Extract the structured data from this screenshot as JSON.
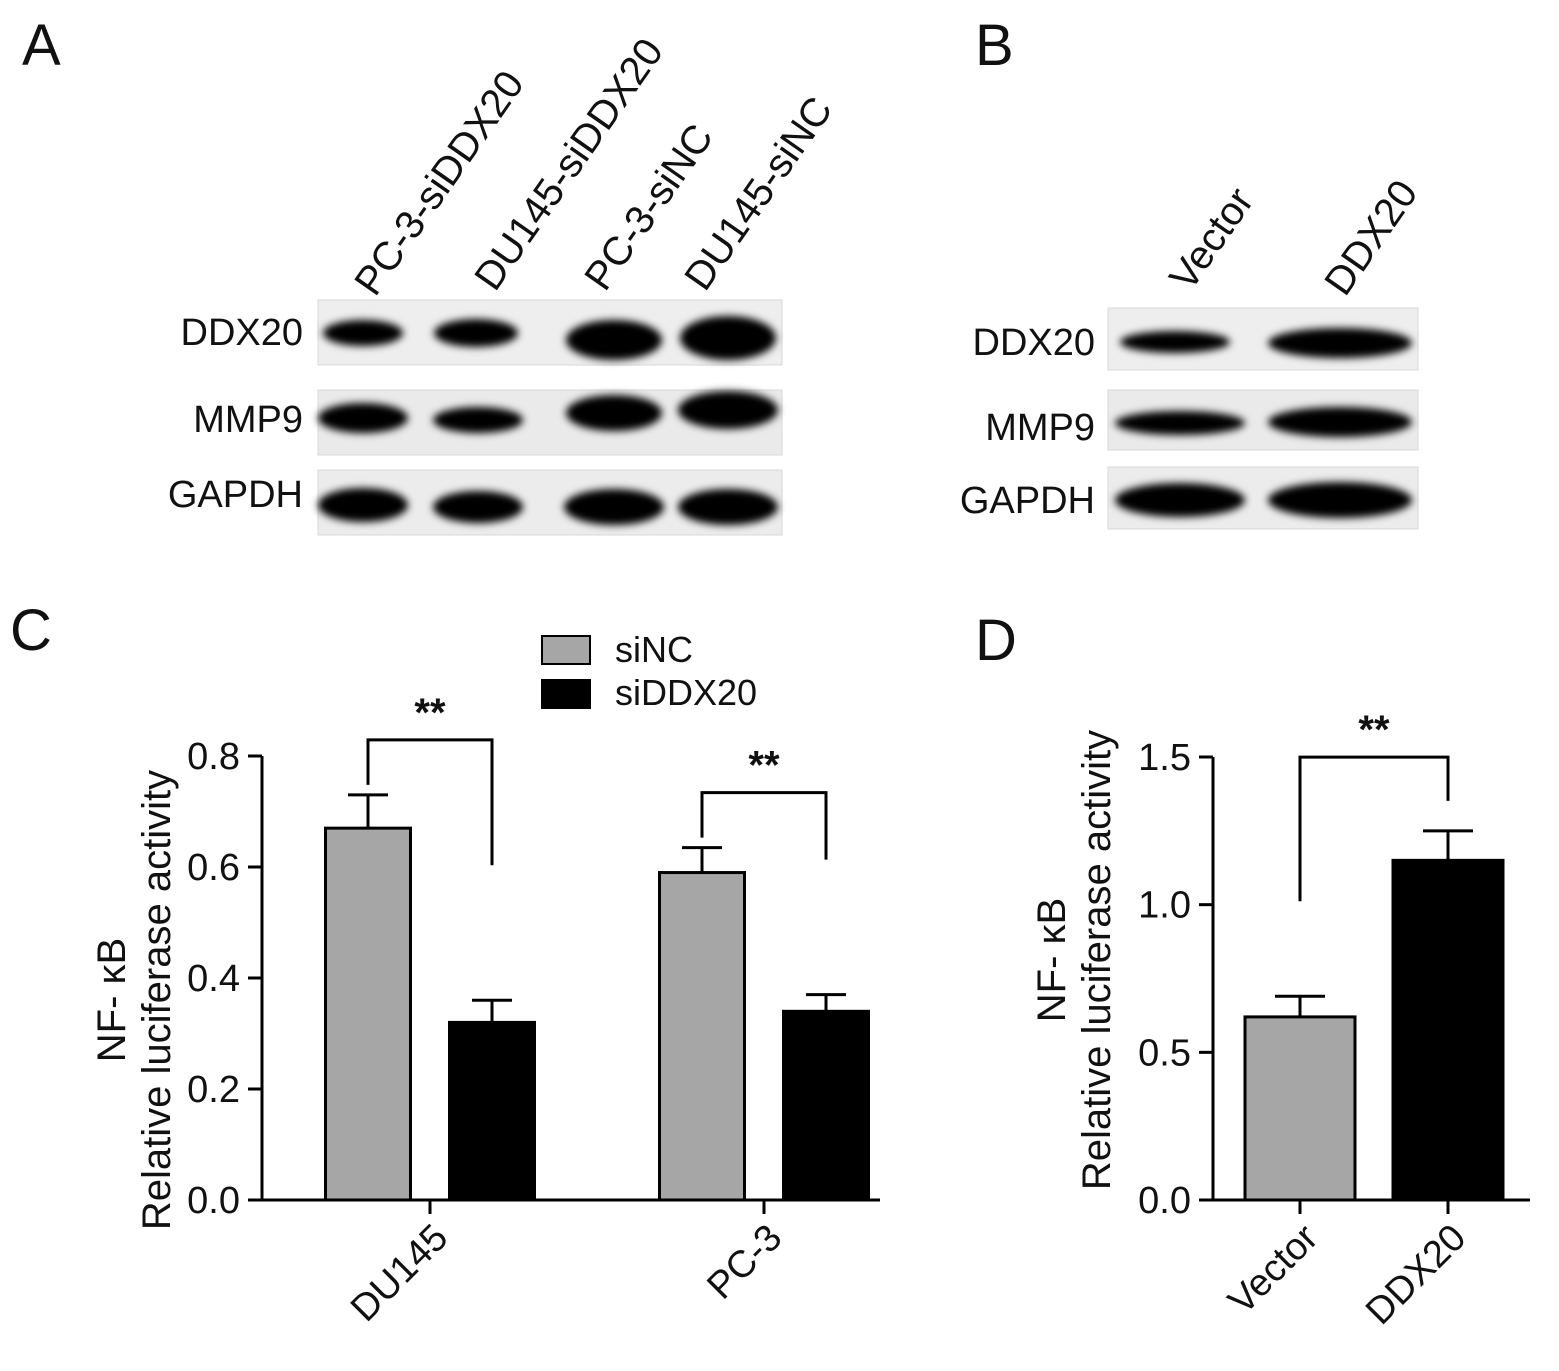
{
  "panel_letters": {
    "a": "A",
    "b": "B",
    "c": "C",
    "d": "D"
  },
  "blot_a": {
    "lanes": [
      "PC-3-siDDX20",
      "DU145-siDDX20",
      "PC-3-siNC",
      "DU145-siNC"
    ],
    "rows": [
      {
        "label": "DDX20",
        "intensities": [
          0.25,
          0.35,
          0.95,
          1.0
        ]
      },
      {
        "label": "MMP9",
        "intensities": [
          0.75,
          0.65,
          0.95,
          1.0
        ]
      },
      {
        "label": "GAPDH",
        "intensities": [
          1.0,
          0.95,
          1.0,
          1.0
        ]
      }
    ]
  },
  "blot_b": {
    "lanes": [
      "Vector",
      "DDX20"
    ],
    "rows": [
      {
        "label": "DDX20",
        "intensities": [
          0.6,
          1.0
        ]
      },
      {
        "label": "MMP9",
        "intensities": [
          0.85,
          1.0
        ]
      },
      {
        "label": "GAPDH",
        "intensities": [
          1.0,
          1.0
        ]
      }
    ]
  },
  "colors": {
    "grey_bar": "#a6a6a6",
    "black_bar": "#000000",
    "bar_edge": "#000000"
  },
  "chart_data": [
    {
      "type": "bar",
      "panel": "C",
      "categories": [
        "DU145",
        "PC-3"
      ],
      "series": [
        {
          "name": "siNC",
          "values": [
            0.67,
            0.59
          ],
          "errors": [
            0.06,
            0.045
          ],
          "color": "#a6a6a6"
        },
        {
          "name": "siDDX20",
          "values": [
            0.32,
            0.34
          ],
          "errors": [
            0.04,
            0.03
          ],
          "color": "#000000"
        }
      ],
      "ylabel_line1": "NF- κB",
      "ylabel_line2": "Relative luciferase activity",
      "ylim": [
        0,
        0.8
      ],
      "yticks": [
        "0.0",
        "0.2",
        "0.4",
        "0.6",
        "0.8"
      ],
      "significance": [
        "**",
        "**"
      ],
      "legend_position": "top"
    },
    {
      "type": "bar",
      "panel": "D",
      "categories": [
        "Vector",
        "DDX20"
      ],
      "series": [
        {
          "name": "",
          "values": [
            0.62,
            1.15
          ],
          "errors": [
            0.07,
            0.1
          ],
          "colors": [
            "#a6a6a6",
            "#000000"
          ]
        }
      ],
      "ylabel_line1": "NF- κB",
      "ylabel_line2": "Relative luciferase activity",
      "ylim": [
        0,
        1.5
      ],
      "yticks": [
        "0.0",
        "0.5",
        "1.0",
        "1.5"
      ],
      "significance": [
        "**"
      ]
    }
  ]
}
